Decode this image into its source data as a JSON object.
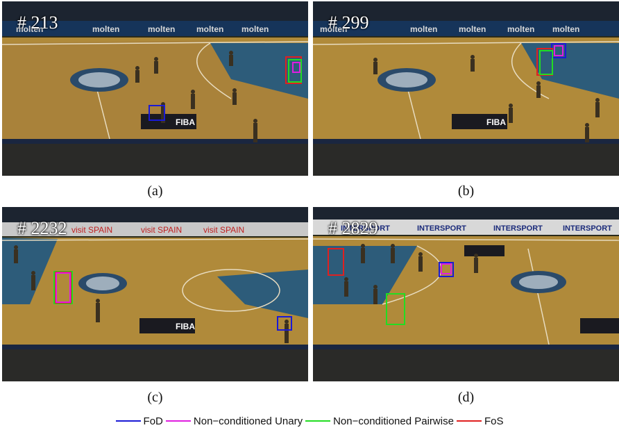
{
  "panels": [
    {
      "frame": "# 213",
      "caption": "(a)",
      "banner": "molten"
    },
    {
      "frame": "# 299",
      "caption": "(b)",
      "banner": "molten"
    },
    {
      "frame": "# 2232",
      "caption": "(c)",
      "banner": "visit SPAIN"
    },
    {
      "frame": "# 2829",
      "caption": "(d)",
      "banner": "INTERSPORT"
    }
  ],
  "court_logo_text": "FIBA",
  "legend": [
    {
      "label": "FoD",
      "color": "#1a1ad6"
    },
    {
      "label": "Non−conditioned Unary",
      "color": "#e01ee0"
    },
    {
      "label": "Non−conditioned Pairwise",
      "color": "#22dd22"
    },
    {
      "label": "FoS",
      "color": "#e02020"
    }
  ]
}
